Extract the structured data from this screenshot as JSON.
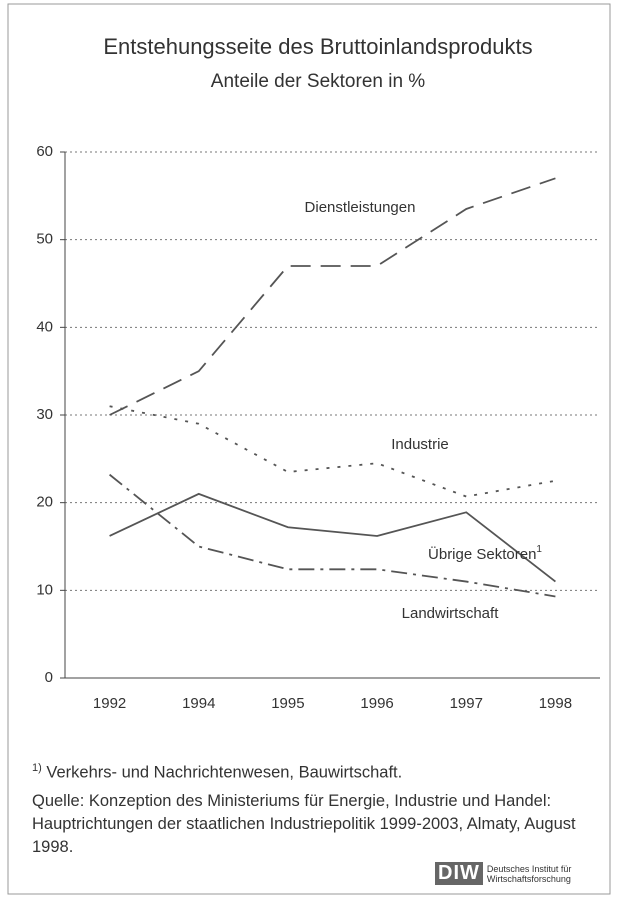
{
  "chart_data": {
    "type": "line",
    "title": "Entstehungsseite des Bruttoinlandsprodukts",
    "subtitle": "Anteile der Sektoren in %",
    "categories": [
      "1992",
      "1994",
      "1995",
      "1996",
      "1997",
      "1998"
    ],
    "ylim": [
      0,
      60
    ],
    "yticks": [
      0,
      10,
      20,
      30,
      40,
      50,
      60
    ],
    "grid": true,
    "series": [
      {
        "name": "Dienstleistungen",
        "color": "#555555",
        "dash": "dashed",
        "values": [
          30,
          35,
          47,
          47,
          53.5,
          57
        ]
      },
      {
        "name": "Industrie",
        "color": "#555555",
        "dash": "dotted",
        "values": [
          31,
          29,
          23.5,
          24.5,
          20.7,
          22.5
        ]
      },
      {
        "name": "Übrige Sektoren",
        "color": "#555555",
        "dash": "solid",
        "values": [
          16.2,
          21,
          17.2,
          16.2,
          18.9,
          11
        ]
      },
      {
        "name": "Landwirtschaft",
        "color": "#555555",
        "dash": "dashdot",
        "values": [
          23.2,
          15,
          12.4,
          12.4,
          11,
          9.3
        ]
      }
    ],
    "label_footnote_mark": "1",
    "footnote": {
      "mark": "1)",
      "text": "Verkehrs- und Nachrichtenwesen, Bauwirtschaft."
    },
    "source": "Quelle: Konzeption des Ministeriums für Energie, Industrie und Handel: Hauptrichtungen der staatlichen Industriepolitik 1999-2003, Almaty, August 1998.",
    "logo": {
      "short": "DIW",
      "line1": "Deutsches Institut für",
      "line2": "Wirtschaftsforschung"
    }
  }
}
